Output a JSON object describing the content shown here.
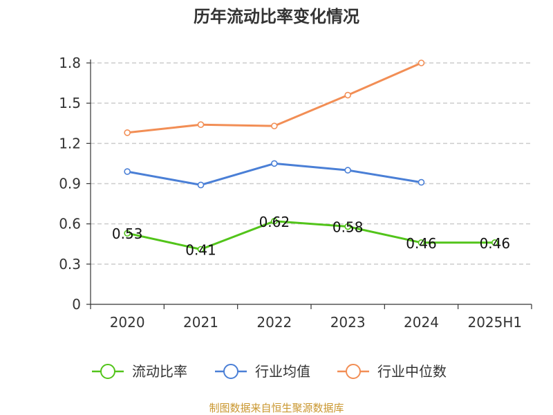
{
  "chart_data": {
    "type": "line",
    "title": "历年流动比率变化情况",
    "categories": [
      "2020",
      "2021",
      "2022",
      "2023",
      "2024",
      "2025H1"
    ],
    "ylim": [
      0,
      1.8
    ],
    "yticks": [
      "0",
      "0.3",
      "0.6",
      "0.9",
      "1.2",
      "1.5",
      "1.8"
    ],
    "grid": "horizontal dashed",
    "legend_position": "bottom",
    "series": [
      {
        "name": "流动比率",
        "color": "#52c41a",
        "values": [
          0.53,
          0.41,
          0.62,
          0.58,
          0.46,
          0.46
        ],
        "labels": [
          "0.53",
          "0.41",
          "0.62",
          "0.58",
          "0.46",
          "0.46"
        ]
      },
      {
        "name": "行业均值",
        "color": "#4a7fd6",
        "values": [
          0.99,
          0.89,
          1.05,
          1.0,
          0.91,
          null
        ]
      },
      {
        "name": "行业中位数",
        "color": "#f28e55",
        "values": [
          1.28,
          1.34,
          1.33,
          1.56,
          1.8,
          null
        ]
      }
    ]
  },
  "source": "制图数据来自恒生聚源数据库"
}
